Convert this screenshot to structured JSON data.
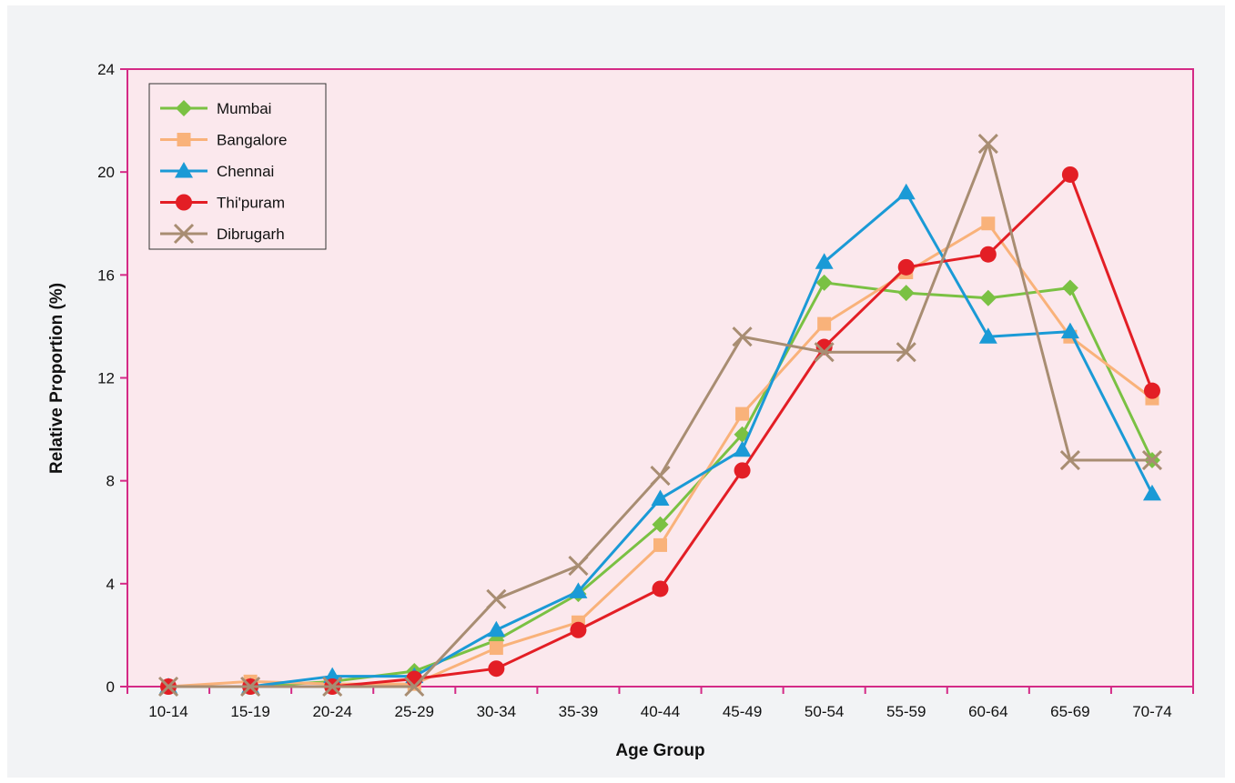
{
  "chart_data": {
    "type": "line",
    "xlabel": "Age Group",
    "ylabel": "Relative Proportion (%)",
    "categories": [
      "10-14",
      "15-19",
      "20-24",
      "25-29",
      "30-34",
      "35-39",
      "40-44",
      "45-49",
      "50-54",
      "55-59",
      "60-64",
      "65-69",
      "70-74"
    ],
    "ylim": [
      0,
      24
    ],
    "yticks": [
      0,
      4,
      8,
      12,
      16,
      20,
      24
    ],
    "legend_position": "top-left",
    "grid": false,
    "series": [
      {
        "name": "Mumbai",
        "color": "#7ac143",
        "marker": "diamond",
        "values": [
          0,
          0,
          0.2,
          0.6,
          1.8,
          3.6,
          6.3,
          9.8,
          15.7,
          15.3,
          15.1,
          15.5,
          8.8
        ]
      },
      {
        "name": "Bangalore",
        "color": "#f9b27a",
        "marker": "square",
        "values": [
          0,
          0.2,
          0.1,
          0.1,
          1.5,
          2.5,
          5.5,
          10.6,
          14.1,
          16.1,
          18.0,
          13.6,
          11.2
        ]
      },
      {
        "name": "Chennai",
        "color": "#1a9ad6",
        "marker": "triangle",
        "values": [
          0,
          0,
          0.4,
          0.4,
          2.2,
          3.7,
          7.3,
          9.2,
          16.5,
          19.2,
          13.6,
          13.8,
          7.5
        ]
      },
      {
        "name": "Thi'puram",
        "color": "#e31e25",
        "marker": "circle",
        "values": [
          0,
          0,
          0,
          0.3,
          0.7,
          2.2,
          3.8,
          8.4,
          13.2,
          16.3,
          16.8,
          19.9,
          11.5
        ]
      },
      {
        "name": "Dibrugarh",
        "color": "#a88d72",
        "marker": "x",
        "values": [
          0,
          0,
          0,
          0,
          3.4,
          4.7,
          8.2,
          13.6,
          13.0,
          13.0,
          21.1,
          8.8,
          8.8
        ]
      }
    ]
  }
}
